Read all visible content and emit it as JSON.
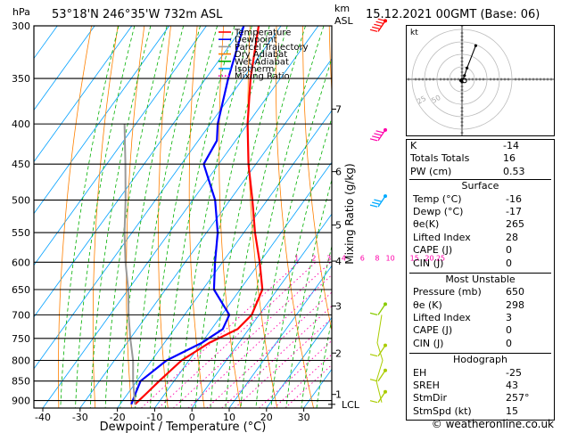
{
  "header": {
    "hpa_unit": "hPa",
    "location": "53°18'N  246°35'W  732m  ASL",
    "km_unit": "km",
    "asl_unit": "ASL",
    "datetime": "15.12.2021  00GMT  (Base: 06)"
  },
  "chart_data": {
    "type": "line",
    "xlabel": "Dewpoint / Temperature (°C)",
    "ylabel": "hPa",
    "right_axis_label": "Mixing Ratio (g/kg)",
    "xlim": [
      -40,
      35
    ],
    "ylim": [
      300,
      920
    ],
    "x_ticks": [
      -40,
      -30,
      -20,
      -10,
      0,
      10,
      20,
      30
    ],
    "pressure_levels": [
      300,
      350,
      400,
      450,
      500,
      550,
      600,
      650,
      700,
      750,
      800,
      850,
      900
    ],
    "km_ticks": [
      {
        "label": "7",
        "p": 383
      },
      {
        "label": "6",
        "p": 460
      },
      {
        "label": "5",
        "p": 538
      },
      {
        "label": "4",
        "p": 598
      },
      {
        "label": "3",
        "p": 682
      },
      {
        "label": "2",
        "p": 783
      },
      {
        "label": "1",
        "p": 884
      }
    ],
    "lcl_label": "LCL",
    "lcl_p": 910,
    "mixing_ratio_labels": [
      {
        "label": "1",
        "x": 0.4
      },
      {
        "label": "2",
        "x": 5
      },
      {
        "label": "3",
        "x": 9
      },
      {
        "label": "4",
        "x": 13
      },
      {
        "label": "6",
        "x": 18
      },
      {
        "label": "8",
        "x": 22
      },
      {
        "label": "10",
        "x": 25.5
      },
      {
        "label": "15",
        "x": 32
      },
      {
        "label": "20",
        "x": 36
      },
      {
        "label": "25",
        "x": 39
      }
    ],
    "legend": [
      {
        "label": "Temperature",
        "color": "#ff0000",
        "style": "solid"
      },
      {
        "label": "Dewpoint",
        "color": "#0000ff",
        "style": "solid"
      },
      {
        "label": "Parcel Trajectory",
        "color": "#999999",
        "style": "solid"
      },
      {
        "label": "Dry Adiabat",
        "color": "#ff8000",
        "style": "solid"
      },
      {
        "label": "Wet Adiabat",
        "color": "#00b000",
        "style": "solid"
      },
      {
        "label": "Isotherm",
        "color": "#00a0ff",
        "style": "solid"
      },
      {
        "label": "Mixing Ratio",
        "color": "#ff00aa",
        "style": "dotted"
      }
    ],
    "series": [
      {
        "name": "Temperature",
        "color": "#ff0000",
        "points": [
          [
            910,
            -16
          ],
          [
            880,
            -15
          ],
          [
            850,
            -14
          ],
          [
            800,
            -12
          ],
          [
            760,
            -8
          ],
          [
            730,
            -3
          ],
          [
            700,
            -2
          ],
          [
            650,
            -4
          ],
          [
            600,
            -10
          ],
          [
            550,
            -17
          ],
          [
            500,
            -24
          ],
          [
            450,
            -32
          ],
          [
            400,
            -40
          ],
          [
            350,
            -48
          ],
          [
            300,
            -56
          ]
        ]
      },
      {
        "name": "Dewpoint",
        "color": "#0000ff",
        "points": [
          [
            910,
            -17
          ],
          [
            880,
            -18
          ],
          [
            850,
            -19
          ],
          [
            800,
            -16
          ],
          [
            760,
            -10
          ],
          [
            730,
            -7
          ],
          [
            700,
            -8
          ],
          [
            650,
            -17
          ],
          [
            600,
            -22
          ],
          [
            550,
            -27
          ],
          [
            500,
            -34
          ],
          [
            450,
            -44
          ],
          [
            420,
            -45
          ],
          [
            400,
            -48
          ],
          [
            350,
            -54
          ],
          [
            300,
            -60
          ]
        ]
      },
      {
        "name": "Parcel Trajectory",
        "color": "#999999",
        "points": [
          [
            910,
            -16
          ],
          [
            850,
            -21
          ],
          [
            800,
            -25
          ],
          [
            750,
            -30
          ],
          [
            700,
            -35
          ],
          [
            650,
            -40
          ],
          [
            600,
            -46
          ],
          [
            550,
            -52
          ],
          [
            500,
            -58
          ],
          [
            450,
            -65
          ],
          [
            400,
            -73
          ]
        ]
      }
    ],
    "wind_barbs": [
      {
        "p": 305,
        "dir": 265,
        "spd": 45,
        "color": "#ff0000"
      },
      {
        "p": 420,
        "dir": 270,
        "spd": 35,
        "color": "#ff00aa"
      },
      {
        "p": 510,
        "dir": 270,
        "spd": 25,
        "color": "#00aaff"
      },
      {
        "p": 700,
        "dir": 250,
        "spd": 10,
        "color": "#88cc00"
      },
      {
        "p": 790,
        "dir": 240,
        "spd": 10,
        "color": "#aacc00"
      },
      {
        "p": 850,
        "dir": 230,
        "spd": 10,
        "color": "#aacc00"
      },
      {
        "p": 905,
        "dir": 230,
        "spd": 10,
        "color": "#aacc00"
      }
    ]
  },
  "hodograph": {
    "label": "kt",
    "rings": [
      10,
      20,
      30,
      40
    ],
    "path": [
      [
        0,
        0
      ],
      [
        -1,
        -1
      ],
      [
        0,
        -2
      ],
      [
        2,
        3
      ],
      [
        4,
        9
      ],
      [
        11,
        27
      ]
    ],
    "storm": [
      2,
      -1
    ],
    "gray_labels": [
      {
        "label": "25",
        "a": 210,
        "r": 40
      },
      {
        "label": "50",
        "a": 220,
        "r": 30
      }
    ]
  },
  "indices": [
    {
      "k": "K",
      "v": "-14"
    },
    {
      "k": "Totals Totals",
      "v": "16"
    },
    {
      "k": "PW (cm)",
      "v": "0.53"
    }
  ],
  "surface": {
    "title": "Surface",
    "rows": [
      {
        "k": "Temp (°C)",
        "v": "-16"
      },
      {
        "k": "Dewp (°C)",
        "v": "-17"
      },
      {
        "k": "θe(K)",
        "v": "265"
      },
      {
        "k": "Lifted Index",
        "v": "28"
      },
      {
        "k": "CAPE (J)",
        "v": "0"
      },
      {
        "k": "CIN (J)",
        "v": "0"
      }
    ]
  },
  "most_unstable": {
    "title": "Most Unstable",
    "rows": [
      {
        "k": "Pressure (mb)",
        "v": "650"
      },
      {
        "k": "θe (K)",
        "v": "298"
      },
      {
        "k": "Lifted Index",
        "v": "3"
      },
      {
        "k": "CAPE (J)",
        "v": "0"
      },
      {
        "k": "CIN (J)",
        "v": "0"
      }
    ]
  },
  "hodograph_table": {
    "title": "Hodograph",
    "rows": [
      {
        "k": "EH",
        "v": "-25"
      },
      {
        "k": "SREH",
        "v": "43"
      },
      {
        "k": "StmDir",
        "v": "257°"
      },
      {
        "k": "StmSpd (kt)",
        "v": "15"
      }
    ]
  },
  "footer": "© weatheronline.co.uk"
}
